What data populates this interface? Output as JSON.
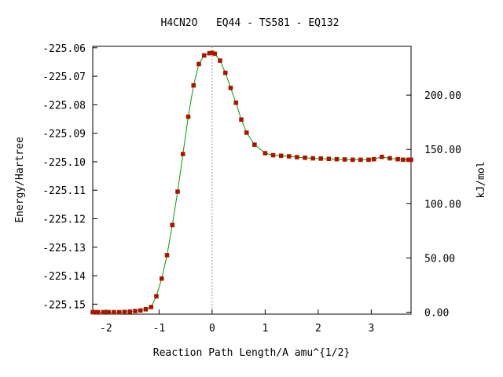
{
  "chart_data": {
    "type": "line",
    "title": "H4CN2O   EQ44 - TS581 - EQ132",
    "xlabel": "Reaction Path Length/A amu^{1/2}",
    "ylabel": "Energy/Hartree",
    "y2label": "kJ/mol",
    "xlim": [
      -2.25,
      3.75
    ],
    "ylim": [
      -225.1535,
      -225.0595
    ],
    "x_ticks": [
      -2,
      -1,
      0,
      1,
      2,
      3
    ],
    "x_tick_labels": [
      "-2",
      "-1",
      "0",
      "1",
      "2",
      "3"
    ],
    "y_ticks": [
      -225.06,
      -225.07,
      -225.08,
      -225.09,
      -225.1,
      -225.11,
      -225.12,
      -225.13,
      -225.14,
      -225.15
    ],
    "y_tick_labels": [
      "-225.06",
      "-225.07",
      "-225.08",
      "-225.09",
      "-225.10",
      "-225.11",
      "-225.12",
      "-225.13",
      "-225.14",
      "-225.15"
    ],
    "y2_base": -225.1528,
    "y2_ticks": [
      0,
      50,
      100,
      150,
      200
    ],
    "y2_tick_labels": [
      "0.00",
      "50.00",
      "100.00",
      "150.00",
      "200.00"
    ],
    "ts_x": 0,
    "colors": {
      "line": "#00a000",
      "marker": "#cc0000",
      "ts_line": "#999999"
    },
    "series": [
      {
        "x": [
          -2.25,
          -2.2,
          -2.15,
          -2.05,
          -1.95,
          -1.85,
          -1.75,
          -1.65,
          -1.55,
          -1.45,
          -1.35,
          -1.25,
          -1.15,
          -1.05,
          -0.95,
          -0.85,
          -0.75,
          -0.65,
          -0.55,
          -0.45,
          -0.35,
          -0.25,
          -0.15,
          -0.05,
          0,
          0.05,
          0.15,
          0.25,
          0.35,
          0.45,
          0.55,
          0.65,
          0.8,
          1.0,
          1.15,
          1.3,
          1.45,
          1.6,
          1.75,
          1.9,
          2.05,
          2.2,
          2.35,
          2.5,
          2.65,
          2.8,
          2.95,
          3.05,
          3.2,
          3.35,
          3.5,
          3.6,
          3.7,
          3.75
        ],
        "y": [
          -225.1528,
          -225.1528,
          -225.1528,
          -225.1528,
          -225.1528,
          -225.1528,
          -225.1528,
          -225.1527,
          -225.1526,
          -225.1524,
          -225.1522,
          -225.1518,
          -225.151,
          -225.1472,
          -225.141,
          -225.1328,
          -225.1222,
          -225.1105,
          -225.0973,
          -225.0842,
          -225.0732,
          -225.0657,
          -225.0627,
          -225.0619,
          -225.0618,
          -225.0621,
          -225.0645,
          -225.0688,
          -225.0741,
          -225.0793,
          -225.0852,
          -225.0898,
          -225.094,
          -225.097,
          -225.0977,
          -225.0979,
          -225.0981,
          -225.0984,
          -225.0986,
          -225.0988,
          -225.0989,
          -225.099,
          -225.0991,
          -225.0992,
          -225.0993,
          -225.0993,
          -225.0993,
          -225.0991,
          -225.0983,
          -225.0988,
          -225.0991,
          -225.0993,
          -225.0993,
          -225.0993
        ]
      }
    ]
  }
}
